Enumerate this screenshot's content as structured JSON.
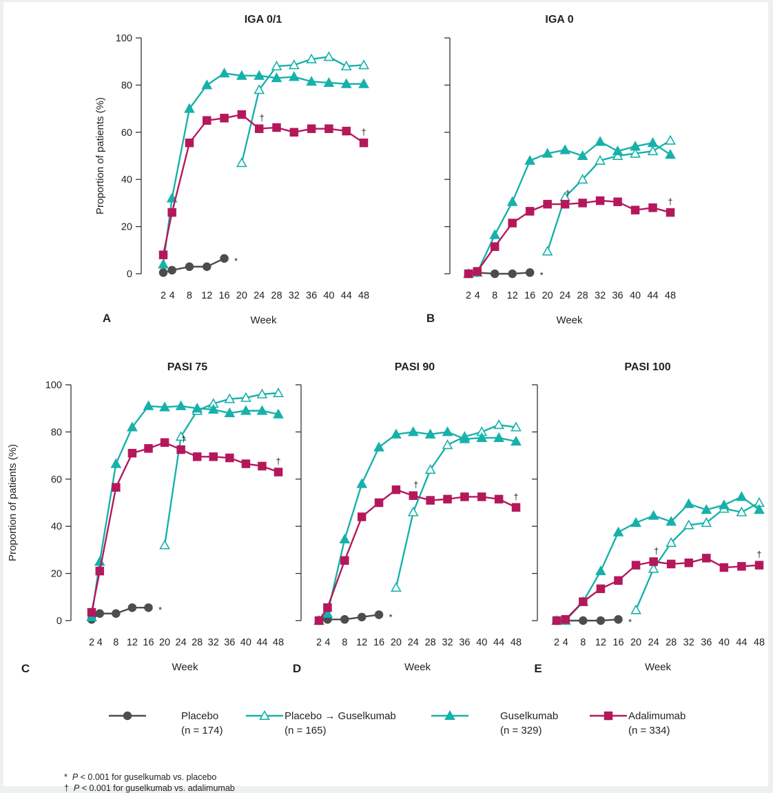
{
  "colors": {
    "placebo": "#4d4d4d",
    "teal": "#16b1aa",
    "adalimumab": "#b4185b"
  },
  "legend": [
    {
      "key": "placebo",
      "label": "Placebo",
      "n": "(n = 174)",
      "marker": "circle-filled",
      "color": "#4d4d4d"
    },
    {
      "key": "placebo_gus",
      "label": "Placebo → Guselkumab",
      "n": "(n = 165)",
      "marker": "triangle-open",
      "color": "#16b1aa"
    },
    {
      "key": "guselkumab",
      "label": "Guselkumab",
      "n": "(n = 329)",
      "marker": "triangle-filled",
      "color": "#16b1aa"
    },
    {
      "key": "adalimumab",
      "label": "Adalimumab",
      "n": "(n = 334)",
      "marker": "square-filled",
      "color": "#b4185b"
    }
  ],
  "footnotes": [
    {
      "symbol": "*",
      "p": "P",
      "text": " < 0.001 for guselkumab vs. placebo"
    },
    {
      "symbol": "†",
      "p": "P",
      "text": " < 0.001 for guselkumab vs. adalimumab"
    }
  ],
  "chart_data": [
    {
      "type": "line",
      "panel": "A",
      "title": "IGA 0/1",
      "xlabel": "Week",
      "ylabel": "Proportion of patients (%)",
      "x": [
        2,
        4,
        8,
        12,
        16,
        20,
        24,
        28,
        32,
        36,
        40,
        44,
        48
      ],
      "ylim": [
        0,
        100
      ],
      "yticks": [
        0,
        20,
        40,
        60,
        80,
        100
      ],
      "series": [
        {
          "name": "Placebo",
          "x": [
            2,
            4,
            8,
            12,
            16
          ],
          "values": [
            0.5,
            1.5,
            3,
            3,
            6.5
          ]
        },
        {
          "name": "Placebo → Guselkumab",
          "x": [
            20,
            24,
            28,
            32,
            36,
            40,
            44,
            48
          ],
          "values": [
            47,
            78,
            88,
            88.5,
            91,
            92,
            88,
            88.5
          ]
        },
        {
          "name": "Guselkumab",
          "x": [
            2,
            4,
            8,
            12,
            16,
            20,
            24,
            28,
            32,
            36,
            40,
            44,
            48
          ],
          "values": [
            4,
            32,
            70,
            80,
            85,
            84,
            84,
            83,
            83.5,
            81.5,
            81,
            80.5,
            80.5
          ]
        },
        {
          "name": "Adalimumab",
          "x": [
            2,
            4,
            8,
            12,
            16,
            20,
            24,
            28,
            32,
            36,
            40,
            44,
            48
          ],
          "values": [
            8,
            26,
            55.5,
            65,
            66,
            67.5,
            61.5,
            62,
            60,
            61.5,
            61.5,
            60.5,
            55.5
          ]
        }
      ],
      "annotations": [
        {
          "symbol": "*",
          "x": 16,
          "y": 6.5
        },
        {
          "symbol": "†",
          "x": 24,
          "y": 61.5
        },
        {
          "symbol": "†",
          "x": 48,
          "y": 55.5
        }
      ]
    },
    {
      "type": "line",
      "panel": "B",
      "title": "IGA 0",
      "xlabel": "Week",
      "ylabel": "",
      "x": [
        2,
        4,
        8,
        12,
        16,
        20,
        24,
        28,
        32,
        36,
        40,
        44,
        48
      ],
      "ylim": [
        0,
        100
      ],
      "yticks": [],
      "series": [
        {
          "name": "Placebo",
          "x": [
            2,
            4,
            8,
            12,
            16
          ],
          "values": [
            0,
            0.5,
            0,
            0,
            0.5
          ]
        },
        {
          "name": "Placebo → Guselkumab",
          "x": [
            20,
            24,
            28,
            32,
            36,
            40,
            44,
            48
          ],
          "values": [
            9.5,
            32.5,
            40,
            48,
            50,
            51,
            52,
            56.5
          ]
        },
        {
          "name": "Guselkumab",
          "x": [
            2,
            4,
            8,
            12,
            16,
            20,
            24,
            28,
            32,
            36,
            40,
            44,
            48
          ],
          "values": [
            0,
            0.5,
            16.5,
            30.5,
            48,
            51,
            52.5,
            50,
            56,
            52,
            54,
            55.5,
            50.5
          ]
        },
        {
          "name": "Adalimumab",
          "x": [
            2,
            4,
            8,
            12,
            16,
            20,
            24,
            28,
            32,
            36,
            40,
            44,
            48
          ],
          "values": [
            0,
            1,
            11.5,
            21.5,
            26.5,
            29.5,
            29.5,
            30,
            31,
            30.5,
            27,
            28,
            26
          ]
        }
      ],
      "annotations": [
        {
          "symbol": "*",
          "x": 16,
          "y": 0.5
        },
        {
          "symbol": "†",
          "x": 24,
          "y": 29.5
        },
        {
          "symbol": "†",
          "x": 48,
          "y": 26
        }
      ]
    },
    {
      "type": "line",
      "panel": "C",
      "title": "PASI 75",
      "xlabel": "Week",
      "ylabel": "Proportion of patients (%)",
      "x": [
        2,
        4,
        8,
        12,
        16,
        20,
        24,
        28,
        32,
        36,
        40,
        44,
        48
      ],
      "ylim": [
        0,
        100
      ],
      "yticks": [
        0,
        20,
        40,
        60,
        80,
        100
      ],
      "series": [
        {
          "name": "Placebo",
          "x": [
            2,
            4,
            8,
            12,
            16
          ],
          "values": [
            0.5,
            3,
            3,
            5.5,
            5.5
          ]
        },
        {
          "name": "Placebo → Guselkumab",
          "x": [
            20,
            24,
            28,
            32,
            36,
            40,
            44,
            48
          ],
          "values": [
            32,
            78,
            89,
            92,
            94,
            94.5,
            96,
            96.5
          ]
        },
        {
          "name": "Guselkumab",
          "x": [
            2,
            4,
            8,
            12,
            16,
            20,
            24,
            28,
            32,
            36,
            40,
            44,
            48
          ],
          "values": [
            1.5,
            25,
            66.5,
            82,
            91,
            90.5,
            91,
            90,
            89.5,
            88,
            89,
            89,
            87.5
          ]
        },
        {
          "name": "Adalimumab",
          "x": [
            2,
            4,
            8,
            12,
            16,
            20,
            24,
            28,
            32,
            36,
            40,
            44,
            48
          ],
          "values": [
            3.5,
            21,
            56.5,
            71,
            73,
            75.5,
            72.5,
            69.5,
            69.5,
            69,
            66.5,
            65.5,
            63
          ]
        }
      ],
      "annotations": [
        {
          "symbol": "*",
          "x": 16,
          "y": 5.5
        },
        {
          "symbol": "†",
          "x": 24,
          "y": 72.5
        },
        {
          "symbol": "†",
          "x": 48,
          "y": 63
        }
      ]
    },
    {
      "type": "line",
      "panel": "D",
      "title": "PASI 90",
      "xlabel": "Week",
      "ylabel": "",
      "x": [
        2,
        4,
        8,
        12,
        16,
        20,
        24,
        28,
        32,
        36,
        40,
        44,
        48
      ],
      "ylim": [
        0,
        100
      ],
      "yticks": [],
      "series": [
        {
          "name": "Placebo",
          "x": [
            2,
            4,
            8,
            12,
            16
          ],
          "values": [
            0,
            0.5,
            0.5,
            1.5,
            2.5
          ]
        },
        {
          "name": "Placebo → Guselkumab",
          "x": [
            20,
            24,
            28,
            32,
            36,
            40,
            44,
            48
          ],
          "values": [
            14,
            46,
            64,
            74.5,
            78,
            80,
            83,
            82
          ]
        },
        {
          "name": "Guselkumab",
          "x": [
            2,
            4,
            8,
            12,
            16,
            20,
            24,
            28,
            32,
            36,
            40,
            44,
            48
          ],
          "values": [
            0,
            3,
            34.5,
            58,
            73.5,
            79,
            80,
            79,
            80,
            77,
            77.5,
            77.5,
            76
          ]
        },
        {
          "name": "Adalimumab",
          "x": [
            2,
            4,
            8,
            12,
            16,
            20,
            24,
            28,
            32,
            36,
            40,
            44,
            48
          ],
          "values": [
            0,
            5.5,
            25.5,
            44,
            50,
            55.5,
            53,
            51,
            51.5,
            52.5,
            52.5,
            51.5,
            48
          ]
        }
      ],
      "annotations": [
        {
          "symbol": "*",
          "x": 16,
          "y": 2.5
        },
        {
          "symbol": "†",
          "x": 24,
          "y": 53
        },
        {
          "symbol": "†",
          "x": 48,
          "y": 48
        }
      ]
    },
    {
      "type": "line",
      "panel": "E",
      "title": "PASI 100",
      "xlabel": "Week",
      "ylabel": "",
      "x": [
        2,
        4,
        8,
        12,
        16,
        20,
        24,
        28,
        32,
        36,
        40,
        44,
        48
      ],
      "ylim": [
        0,
        100
      ],
      "yticks": [],
      "series": [
        {
          "name": "Placebo",
          "x": [
            2,
            4,
            8,
            12,
            16
          ],
          "values": [
            0,
            0,
            0,
            0,
            0.5
          ]
        },
        {
          "name": "Placebo → Guselkumab",
          "x": [
            20,
            24,
            28,
            32,
            36,
            40,
            44,
            48
          ],
          "values": [
            4.5,
            22,
            33,
            40.5,
            41.5,
            47.5,
            46,
            50
          ]
        },
        {
          "name": "Guselkumab",
          "x": [
            2,
            4,
            8,
            12,
            16,
            20,
            24,
            28,
            32,
            36,
            40,
            44,
            48
          ],
          "values": [
            0,
            0,
            8,
            21,
            37.5,
            41.5,
            44.5,
            42,
            49.5,
            47,
            49,
            52.5,
            47
          ]
        },
        {
          "name": "Adalimumab",
          "x": [
            2,
            4,
            8,
            12,
            16,
            20,
            24,
            28,
            32,
            36,
            40,
            44,
            48
          ],
          "values": [
            0,
            0.5,
            8,
            13.5,
            17,
            23.5,
            25,
            24,
            24.5,
            26.5,
            22.5,
            23,
            23.5
          ]
        }
      ],
      "annotations": [
        {
          "symbol": "*",
          "x": 16,
          "y": 0.5
        },
        {
          "symbol": "†",
          "x": 24,
          "y": 25
        },
        {
          "symbol": "†",
          "x": 48,
          "y": 23.5
        }
      ]
    }
  ]
}
